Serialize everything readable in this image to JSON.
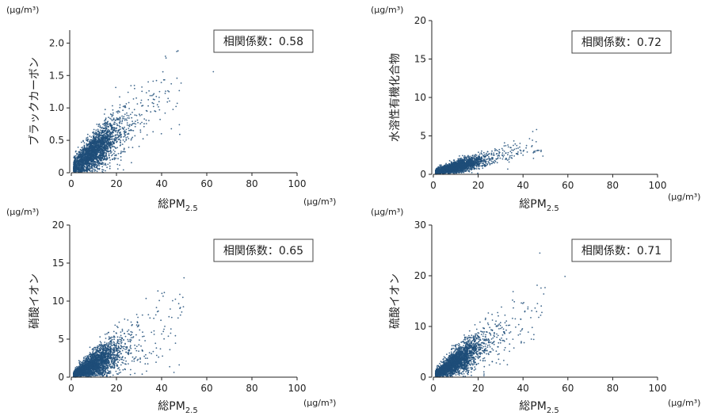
{
  "marker_color": "#1f4e79",
  "chart_data": [
    {
      "type": "scatter",
      "ylabel": "ブラックカーボン",
      "xlabel": "総PM",
      "xlabel_sub": "2.5",
      "x_unit": "(μg/m³)",
      "y_unit": "(μg/m³)",
      "xlim": [
        0,
        100
      ],
      "ylim": [
        0,
        2.2
      ],
      "xticks": [
        0,
        20,
        40,
        60,
        80,
        100
      ],
      "yticks": [
        0,
        0.5,
        1.0,
        1.5,
        2.0
      ],
      "ytick_labels": [
        "0",
        "0.5",
        "1.0",
        "1.5",
        "2.0"
      ],
      "annotation": "相関係数：0.58",
      "corr_label": "相関係数",
      "correlation": 0.58,
      "grid": false
    },
    {
      "type": "scatter",
      "ylabel": "水溶性有機化合物",
      "xlabel": "総PM",
      "xlabel_sub": "2.5",
      "x_unit": "(μg/m³)",
      "y_unit": "(μg/m³)",
      "xlim": [
        0,
        100
      ],
      "ylim": [
        0,
        20
      ],
      "xticks": [
        0,
        20,
        40,
        60,
        80,
        100
      ],
      "yticks": [
        0,
        5,
        10,
        15,
        20
      ],
      "ytick_labels": [
        "0",
        "5",
        "10",
        "15",
        "20"
      ],
      "annotation": "相関係数：0.72",
      "corr_label": "相関係数",
      "correlation": 0.72,
      "grid": false
    },
    {
      "type": "scatter",
      "ylabel": "硝酸イオン",
      "xlabel": "総PM",
      "xlabel_sub": "2.5",
      "x_unit": "(μg/m³)",
      "y_unit": "(μg/m³)",
      "xlim": [
        0,
        100
      ],
      "ylim": [
        0,
        20
      ],
      "xticks": [
        0,
        20,
        40,
        60,
        80,
        100
      ],
      "yticks": [
        0,
        5,
        10,
        15,
        20
      ],
      "ytick_labels": [
        "0",
        "5",
        "10",
        "15",
        "20"
      ],
      "annotation": "相関係数：0.65",
      "corr_label": "相関係数",
      "correlation": 0.65,
      "grid": false
    },
    {
      "type": "scatter",
      "ylabel": "硫酸イオン",
      "xlabel": "総PM",
      "xlabel_sub": "2.5",
      "x_unit": "(μg/m³)",
      "y_unit": "(μg/m³)",
      "xlim": [
        0,
        100
      ],
      "ylim": [
        0,
        30
      ],
      "xticks": [
        0,
        20,
        40,
        60,
        80,
        100
      ],
      "yticks": [
        0,
        10,
        20,
        30
      ],
      "ytick_labels": [
        "0",
        "10",
        "20",
        "30"
      ],
      "annotation": "相関係数：0.71",
      "corr_label": "相関係数",
      "correlation": 0.71,
      "grid": false
    }
  ]
}
